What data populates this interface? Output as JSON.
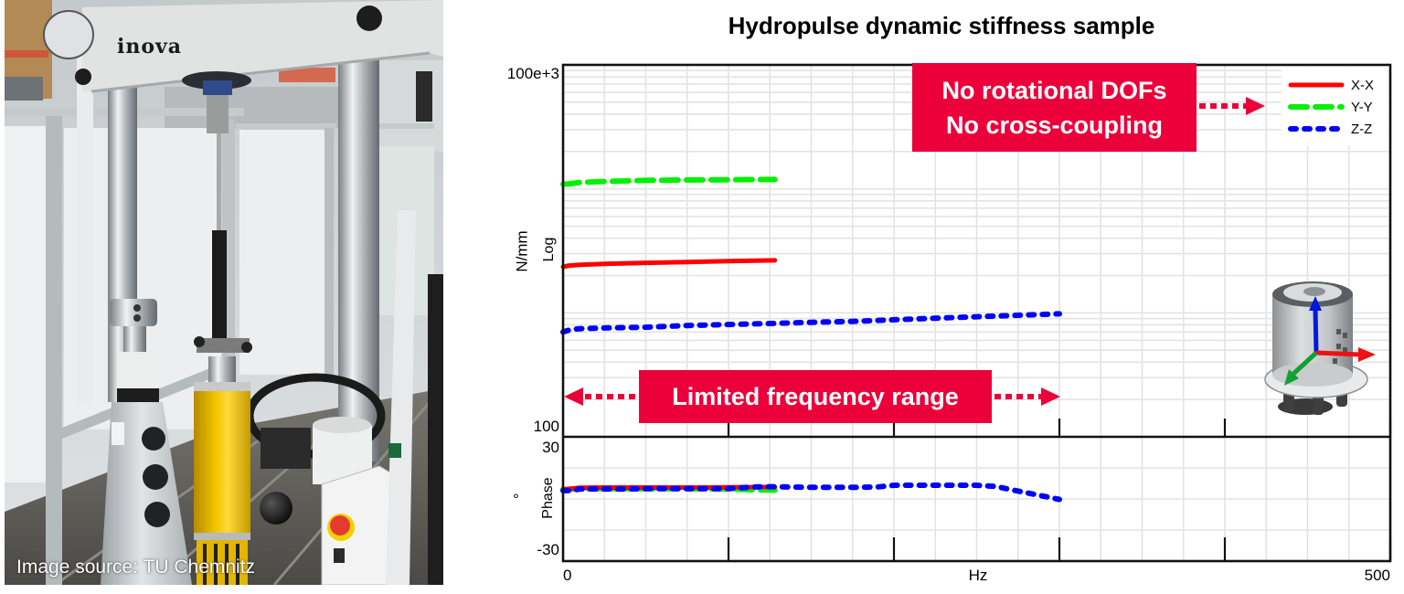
{
  "photo": {
    "caption": "Image source: TU Chemnitz",
    "brand_text": "inova"
  },
  "chart_data": {
    "type": "line",
    "title": "Hydropulse dynamic stiffness sample",
    "xlabel": "Hz",
    "xlim": [
      0,
      500
    ],
    "x_tick_labels": {
      "min": "0",
      "max": "500"
    },
    "x_major_ticks": [
      100,
      200,
      300,
      400,
      500
    ],
    "x_grid_step": 25,
    "grid": true,
    "legend": {
      "position": "upper right",
      "entries": [
        {
          "label": "X-X",
          "color": "#ff0000",
          "style": "solid"
        },
        {
          "label": "Y-Y",
          "color": "#00f000",
          "style": "dashed"
        },
        {
          "label": "Z-Z",
          "color": "#0000ff",
          "style": "dotted"
        }
      ]
    },
    "panels": {
      "magnitude": {
        "ylabel": "N/mm",
        "yscale_label": "Log",
        "yscale": "log",
        "ylim": [
          100,
          100000
        ],
        "y_tick_labels": {
          "min": "100",
          "max": "100e+3"
        },
        "series": [
          {
            "name": "Y-Y",
            "x": [
              0,
              4,
              10,
              20,
              30,
              50,
              75,
              100,
              128
            ],
            "y": [
              10900,
              11000,
              11250,
              11400,
              11500,
              11700,
              11800,
              11850,
              11900
            ]
          },
          {
            "name": "X-X",
            "x": [
              0,
              3,
              10,
              25,
              50,
              75,
              100,
              128
            ],
            "y": [
              2350,
              2400,
              2440,
              2480,
              2530,
              2570,
              2610,
              2650
            ]
          },
          {
            "name": "Z-Z",
            "x": [
              0,
              5,
              10,
              25,
              50,
              75,
              100,
              125,
              150,
              175,
              200,
              225,
              250,
              275,
              300
            ],
            "y": [
              700,
              735,
              745,
              755,
              765,
              790,
              805,
              820,
              838,
              853,
              880,
              905,
              930,
              955,
              982
            ]
          }
        ]
      },
      "phase": {
        "ylabel": "°",
        "yscale_label": "Phase",
        "yscale": "linear",
        "ylim": [
          -30,
          30
        ],
        "y_grid_step": 15,
        "y_tick_labels": {
          "min": "-30",
          "max": "30"
        },
        "series": [
          {
            "name": "Y-Y",
            "x": [
              0,
              10,
              25,
              50,
              75,
              100,
              115,
              128
            ],
            "y": [
              4.6,
              4.9,
              4.9,
              4.9,
              4.9,
              4.8,
              4.4,
              4.3
            ]
          },
          {
            "name": "X-X",
            "x": [
              0,
              10,
              25,
              50,
              75,
              100,
              128
            ],
            "y": [
              4.6,
              5.4,
              5.5,
              5.5,
              5.5,
              5.6,
              5.8
            ]
          },
          {
            "name": "Z-Z",
            "x": [
              0,
              5,
              10,
              25,
              40,
              50,
              75,
              100,
              115,
              125,
              150,
              175,
              190,
              200,
              225,
              250,
              262,
              270,
              280,
              290,
              300
            ],
            "y": [
              4.0,
              4.0,
              4.8,
              4.8,
              4.8,
              5.0,
              5.0,
              5.0,
              5.8,
              5.9,
              5.6,
              5.6,
              5.8,
              6.6,
              6.6,
              6.6,
              6.0,
              4.6,
              3.0,
              1.4,
              -0.2
            ]
          }
        ]
      }
    },
    "annotations": [
      {
        "id": "dof-note",
        "lines": [
          "No rotational DOFs",
          "No cross-coupling"
        ],
        "arrow": "right, pointing to legend"
      },
      {
        "id": "range-note",
        "text": "Limited frequency range",
        "arrow": "double-headed",
        "range_hz": [
          0,
          300
        ]
      }
    ],
    "annotation_color": "#eb003a",
    "inset_icon": "bushing-with-xyz-axes"
  }
}
